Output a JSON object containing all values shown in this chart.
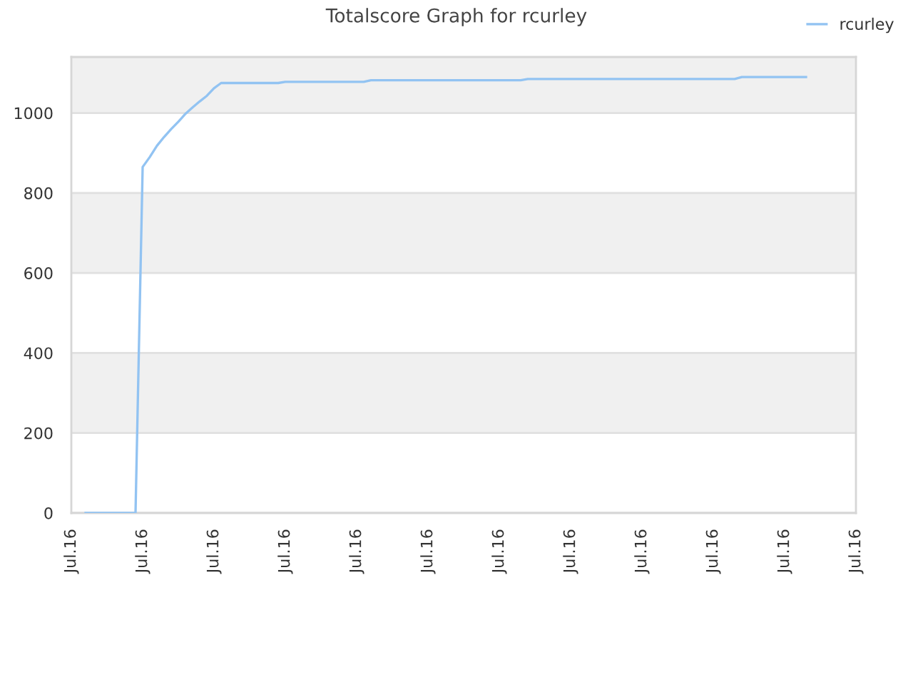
{
  "chart_data": {
    "type": "line",
    "title": "Totalscore Graph for rcurley",
    "categories": [
      "Jul.16",
      null,
      null,
      null,
      null,
      null,
      null,
      null,
      null,
      null,
      "Jul.16",
      null,
      null,
      null,
      null,
      null,
      null,
      null,
      null,
      null,
      "Jul.16",
      null,
      null,
      null,
      null,
      null,
      null,
      null,
      null,
      null,
      "Jul.16",
      null,
      null,
      null,
      null,
      null,
      null,
      null,
      null,
      null,
      "Jul.16",
      null,
      null,
      null,
      null,
      null,
      null,
      null,
      null,
      null,
      "Jul.16",
      null,
      null,
      null,
      null,
      null,
      null,
      null,
      null,
      null,
      "Jul.16",
      null,
      null,
      null,
      null,
      null,
      null,
      null,
      null,
      null,
      "Jul.16",
      null,
      null,
      null,
      null,
      null,
      null,
      null,
      null,
      null,
      "Jul.16",
      null,
      null,
      null,
      null,
      null,
      null,
      null,
      null,
      null,
      "Jul.16",
      null,
      null,
      null,
      null,
      null,
      null,
      null,
      null,
      null,
      "Jul.16",
      null,
      null,
      null,
      null,
      null,
      null,
      null,
      null,
      null,
      "Jul.16"
    ],
    "ylim": [
      0,
      1140
    ],
    "yticks": [
      0,
      200,
      400,
      600,
      800,
      1000
    ],
    "grid": "y",
    "legend": "top right",
    "marker": "none",
    "line_style": "solid",
    "series": [
      {
        "name": "rcurley",
        "color": "#92c3f2",
        "values": [
          null,
          null,
          0,
          0,
          0,
          0,
          0,
          0,
          0,
          0,
          865,
          890,
          918,
          940,
          960,
          978,
          998,
          1014,
          1029,
          1043,
          1062,
          1075,
          1075,
          1075,
          1075,
          1075,
          1075,
          1075,
          1075,
          1075,
          1078,
          1078,
          1078,
          1078,
          1078,
          1078,
          1078,
          1078,
          1078,
          1078,
          1078,
          1078,
          1082,
          1082,
          1082,
          1082,
          1082,
          1082,
          1082,
          1082,
          1082,
          1082,
          1082,
          1082,
          1082,
          1082,
          1082,
          1082,
          1082,
          1082,
          1082,
          1082,
          1082,
          1082,
          1085,
          1085,
          1085,
          1085,
          1085,
          1085,
          1085,
          1085,
          1085,
          1085,
          1085,
          1085,
          1085,
          1085,
          1085,
          1085,
          1085,
          1085,
          1085,
          1085,
          1085,
          1085,
          1085,
          1085,
          1085,
          1085,
          1085,
          1085,
          1085,
          1085,
          1090,
          1090,
          1090,
          1090,
          1090,
          1090,
          1090,
          1090,
          1090,
          1090,
          null,
          null,
          null,
          null,
          null,
          null,
          null
        ]
      }
    ]
  }
}
